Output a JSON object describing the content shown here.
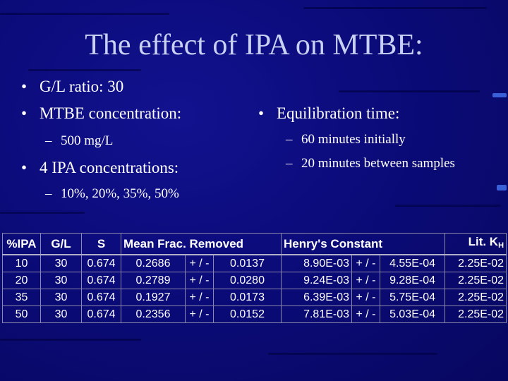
{
  "slide": {
    "title": "The effect of IPA on MTBE:",
    "left_bullets": [
      {
        "text": "G/L ratio: 30"
      },
      {
        "text": "MTBE concentration:"
      },
      {
        "sub": "500 mg/L"
      },
      {
        "text": "4 IPA concentrations:"
      },
      {
        "sub": "10%, 20%, 35%, 50%"
      }
    ],
    "right_bullets": [
      {
        "text": "Equilibration time:"
      },
      {
        "sub": "60 minutes initially"
      },
      {
        "sub": "20 minutes between samples"
      }
    ],
    "bullet_glyph": "•",
    "dash_glyph": "–"
  },
  "table": {
    "headers": {
      "ipa": "%IPA",
      "gl": "G/L",
      "s": "S",
      "mean": "Mean Frac. Removed",
      "henry": "Henry's Constant",
      "lit": "Lit. K",
      "lit_sub": "H"
    },
    "rows": [
      {
        "ipa": "10",
        "gl": "30",
        "s": "0.674",
        "mean": "0.2686",
        "pm1": "+ / -",
        "mean_err": "0.0137",
        "henry": "8.90E-03",
        "pm2": "+ / -",
        "henry_err": "4.55E-04",
        "lit": "2.25E-02"
      },
      {
        "ipa": "20",
        "gl": "30",
        "s": "0.674",
        "mean": "0.2789",
        "pm1": "+ / -",
        "mean_err": "0.0280",
        "henry": "9.24E-03",
        "pm2": "+ / -",
        "henry_err": "9.28E-04",
        "lit": "2.25E-02"
      },
      {
        "ipa": "35",
        "gl": "30",
        "s": "0.674",
        "mean": "0.1927",
        "pm1": "+ / -",
        "mean_err": "0.0173",
        "henry": "6.39E-03",
        "pm2": "+ / -",
        "henry_err": "5.75E-04",
        "lit": "2.25E-02"
      },
      {
        "ipa": "50",
        "gl": "30",
        "s": "0.674",
        "mean": "0.2356",
        "pm1": "+ / -",
        "mean_err": "0.0152",
        "henry": "7.81E-03",
        "pm2": "+ / -",
        "henry_err": "5.03E-04",
        "lit": "2.25E-02"
      }
    ]
  },
  "colors": {
    "background": "#0b0b7a",
    "title": "#c9d1f2",
    "text": "#ffffff",
    "accent": "#3b5fd6"
  }
}
